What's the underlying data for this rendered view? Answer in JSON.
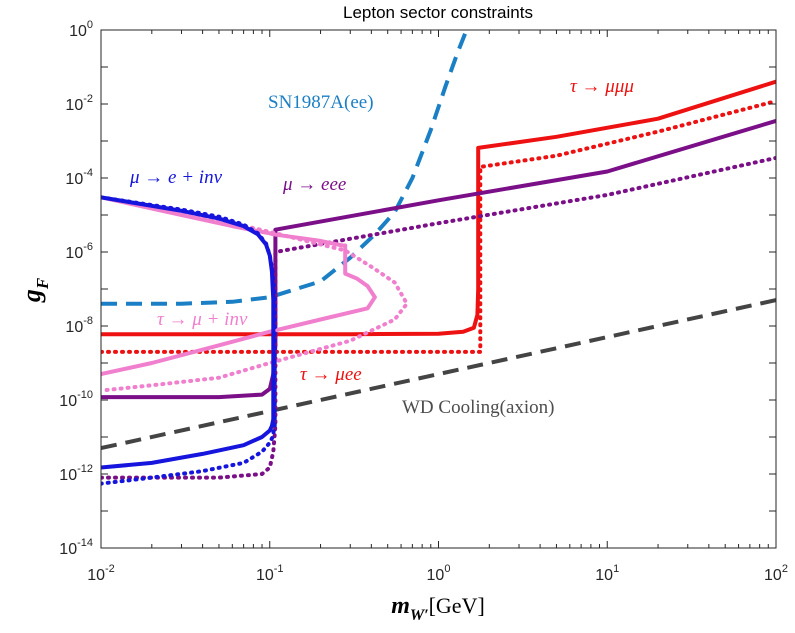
{
  "chart_data": {
    "type": "line",
    "title": "Lepton sector constraints",
    "xlabel": {
      "main": "m",
      "sub": "W′",
      "unit": "[GeV]"
    },
    "ylabel": {
      "main": "g",
      "sub": "F"
    },
    "xscale": "log",
    "yscale": "log",
    "xlim": [
      0.01,
      100
    ],
    "ylim": [
      1e-14,
      1
    ],
    "x_ticks": [
      {
        "base": "10",
        "exp": "-2",
        "value": 0.01
      },
      {
        "base": "10",
        "exp": "-1",
        "value": 0.1
      },
      {
        "base": "10",
        "exp": "0",
        "value": 1
      },
      {
        "base": "10",
        "exp": "1",
        "value": 10
      },
      {
        "base": "10",
        "exp": "2",
        "value": 100
      }
    ],
    "y_ticks": [
      {
        "base": "10",
        "exp": "-14",
        "value": 1e-14
      },
      {
        "base": "10",
        "exp": "-12",
        "value": 1e-12
      },
      {
        "base": "10",
        "exp": "-10",
        "value": 1e-10
      },
      {
        "base": "10",
        "exp": "-8",
        "value": 1e-08
      },
      {
        "base": "10",
        "exp": "-6",
        "value": 1e-06
      },
      {
        "base": "10",
        "exp": "-4",
        "value": 0.0001
      },
      {
        "base": "10",
        "exp": "-2",
        "value": 0.01
      },
      {
        "base": "10",
        "exp": "0",
        "value": 1
      }
    ],
    "annotations": [
      {
        "id": "sn",
        "text": "SN1987A(ee)",
        "color": "#1a7fc4"
      },
      {
        "id": "tau-mumumu",
        "text": "τ → μμμ",
        "color": "#ee1111"
      },
      {
        "id": "mu-einv",
        "text": "μ → e + inv",
        "color": "#1515dd"
      },
      {
        "id": "mu-eee",
        "text": "μ → eee",
        "color": "#7a0f88"
      },
      {
        "id": "tau-muinv",
        "text": "τ → μ + inv",
        "color": "#f07fce"
      },
      {
        "id": "tau-muee",
        "text": "τ → μee",
        "color": "#ee1111"
      },
      {
        "id": "wd",
        "text": "WD Cooling(axion)",
        "color": "#4d4d4d"
      }
    ],
    "series": [
      {
        "name": "SN1987A(ee)",
        "color": "#1a7fc4",
        "style": "dashed",
        "width": 4,
        "x": [
          0.01,
          0.03,
          0.06,
          0.1,
          0.2,
          0.3,
          0.42,
          0.55,
          0.7,
          0.9,
          1.1,
          1.3,
          1.5
        ],
        "y": [
          4e-08,
          4e-08,
          4.5e-08,
          6e-08,
          1.6e-07,
          7e-07,
          3e-06,
          1.2e-05,
          0.0001,
          0.002,
          0.03,
          0.25,
          1.3
        ]
      },
      {
        "name": "WD Cooling(axion)",
        "color": "#444444",
        "style": "dashed",
        "width": 4,
        "x": [
          0.01,
          100
        ],
        "y": [
          5e-12,
          5e-08
        ]
      },
      {
        "name": "τ → μμμ (solid)",
        "color": "#ee1111",
        "style": "solid",
        "width": 4,
        "x": [
          0.01,
          0.3,
          1.0,
          1.4,
          1.62,
          1.7,
          1.72,
          1.72,
          5,
          20,
          100
        ],
        "y": [
          6e-09,
          6e-09,
          6.2e-09,
          7e-09,
          9e-09,
          2e-08,
          1e-07,
          0.00065,
          0.0013,
          0.004,
          0.04
        ]
      },
      {
        "name": "τ → μee (dotted)",
        "color": "#ee1111",
        "style": "dotted",
        "width": 4,
        "x": [
          0.01,
          1.7,
          1.77,
          1.77,
          5,
          20,
          100
        ],
        "y": [
          2e-09,
          2e-09,
          2e-09,
          0.0002,
          0.0004,
          0.0018,
          0.012
        ]
      },
      {
        "name": "μ → eee (solid)",
        "color": "#7a0f88",
        "style": "solid",
        "width": 4,
        "x": [
          0.01,
          0.05,
          0.09,
          0.1,
          0.105,
          0.108,
          0.108,
          1,
          10,
          100
        ],
        "y": [
          1.2e-10,
          1.2e-10,
          1.4e-10,
          2e-10,
          5e-10,
          3e-09,
          4e-06,
          2.5e-05,
          0.00015,
          0.0035
        ]
      },
      {
        "name": "μ → eee (dotted)",
        "color": "#7a0f88",
        "style": "dotted",
        "width": 4,
        "x": [
          0.01,
          0.05,
          0.09,
          0.1,
          0.105,
          0.108,
          0.108,
          1,
          10,
          100
        ],
        "y": [
          8e-13,
          8e-13,
          1e-12,
          1.5e-12,
          4e-12,
          2e-11,
          1e-06,
          6e-06,
          3.5e-05,
          0.00035
        ]
      },
      {
        "name": "τ → μ + inv (solid)",
        "color": "#f07fce",
        "style": "solid",
        "width": 4,
        "x": [
          0.01,
          0.03,
          0.06,
          0.09,
          0.1,
          0.105,
          0.2,
          0.27,
          0.28,
          0.28,
          0.33,
          0.38,
          0.42,
          0.38,
          0.2,
          0.1,
          0.05,
          0.02,
          0.01
        ],
        "y": [
          3e-05,
          1e-05,
          5e-06,
          3.5e-06,
          3.2e-06,
          3e-06,
          2e-06,
          1.5e-06,
          1.5e-06,
          2.6e-07,
          1.9e-07,
          1.2e-07,
          6e-08,
          3e-08,
          1.5e-08,
          7e-09,
          3e-09,
          1e-09,
          5e-10
        ]
      },
      {
        "name": "τ → μ + inv (dotted)",
        "color": "#f07fce",
        "style": "dotted",
        "width": 4,
        "x": [
          0.01,
          0.03,
          0.06,
          0.1,
          0.28,
          0.4,
          0.55,
          0.65,
          0.55,
          0.3,
          0.1,
          0.05,
          0.02,
          0.01
        ],
        "y": [
          3e-05,
          1.2e-05,
          6e-06,
          3.5e-06,
          1.1e-06,
          4e-07,
          1.5e-07,
          4e-08,
          1.5e-08,
          4e-09,
          1e-09,
          4e-10,
          2.5e-10,
          1.8e-10
        ]
      },
      {
        "name": "μ → e + inv (solid)",
        "color": "#1515dd",
        "style": "solid",
        "width": 4,
        "x": [
          0.01,
          0.03,
          0.05,
          0.07,
          0.085,
          0.095,
          0.1,
          0.103,
          0.105,
          0.105,
          0.103,
          0.1,
          0.09,
          0.07,
          0.04,
          0.02,
          0.01
        ],
        "y": [
          3e-05,
          1.3e-05,
          8e-06,
          5e-06,
          3e-06,
          1.6e-06,
          8e-07,
          3e-07,
          5e-08,
          3e-11,
          2e-11,
          1.5e-11,
          1e-11,
          6e-12,
          3.5e-12,
          2e-12,
          1.5e-12
        ]
      },
      {
        "name": "μ → e + inv (dotted)",
        "color": "#1515dd",
        "style": "dotted",
        "width": 4,
        "x": [
          0.01,
          0.03,
          0.05,
          0.07,
          0.085,
          0.095,
          0.1,
          0.104,
          0.107,
          0.107,
          0.104,
          0.1,
          0.09,
          0.07,
          0.04,
          0.02,
          0.01
        ],
        "y": [
          3e-05,
          1.4e-05,
          9e-06,
          5.5e-06,
          3.2e-06,
          1.7e-06,
          8e-07,
          3e-07,
          5e-08,
          2e-11,
          1e-11,
          7e-12,
          4e-12,
          2e-12,
          1.2e-12,
          8e-13,
          5.5e-13
        ]
      }
    ]
  }
}
